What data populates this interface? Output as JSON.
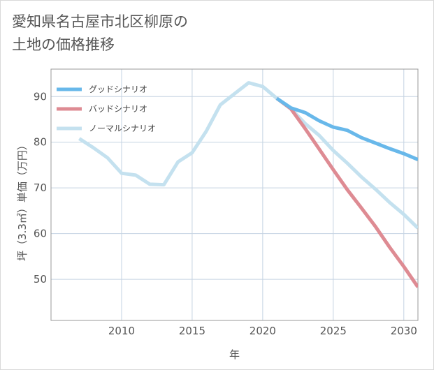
{
  "title": "愛知県名古屋市北区柳原の\n土地の価格推移",
  "chart_data": {
    "type": "line",
    "title": "愛知県名古屋市北区柳原の\n土地の価格推移",
    "xlabel": "年",
    "ylabel": "坪（3.3㎡）単価（万円）",
    "xlim": [
      2005,
      2031
    ],
    "ylim": [
      41,
      96
    ],
    "x_ticks": [
      2010,
      2015,
      2020,
      2025,
      2030
    ],
    "y_ticks": [
      50,
      60,
      70,
      80,
      90
    ],
    "grid": true,
    "legend_position": "top-left",
    "series": [
      {
        "name": "ノーマルシナリオ",
        "color": "#c4e1ef",
        "x": [
          2007,
          2008,
          2009,
          2010,
          2011,
          2012,
          2013,
          2014,
          2015,
          2016,
          2017,
          2018,
          2019,
          2020,
          2021,
          2022,
          2023,
          2024,
          2025,
          2026,
          2027,
          2028,
          2029,
          2030,
          2031
        ],
        "y": [
          80.8,
          78.8,
          76.6,
          73.2,
          72.8,
          70.8,
          70.7,
          75.7,
          77.7,
          82.4,
          88.2,
          90.6,
          93.0,
          92.2,
          89.6,
          87.3,
          84.1,
          81.5,
          78.2,
          75.4,
          72.4,
          69.7,
          66.8,
          64.2,
          61.2
        ]
      },
      {
        "name": "バッドシナリオ",
        "color": "#de8b93",
        "x": [
          2021,
          2022,
          2023,
          2024,
          2025,
          2026,
          2027,
          2028,
          2029,
          2030,
          2031
        ],
        "y": [
          89.6,
          87.3,
          83.0,
          78.5,
          74.0,
          69.6,
          65.6,
          61.5,
          57.0,
          52.8,
          48.3
        ]
      },
      {
        "name": "グッドシナリオ",
        "color": "#68b8ea",
        "x": [
          2021,
          2022,
          2023,
          2024,
          2025,
          2026,
          2027,
          2028,
          2029,
          2030,
          2031
        ],
        "y": [
          89.6,
          87.5,
          86.5,
          84.7,
          83.3,
          82.6,
          81.0,
          79.8,
          78.6,
          77.5,
          76.2
        ]
      }
    ],
    "legend": [
      {
        "name": "グッドシナリオ",
        "color": "#68b8ea"
      },
      {
        "name": "バッドシナリオ",
        "color": "#de8b93"
      },
      {
        "name": "ノーマルシナリオ",
        "color": "#c4e1ef"
      }
    ]
  }
}
